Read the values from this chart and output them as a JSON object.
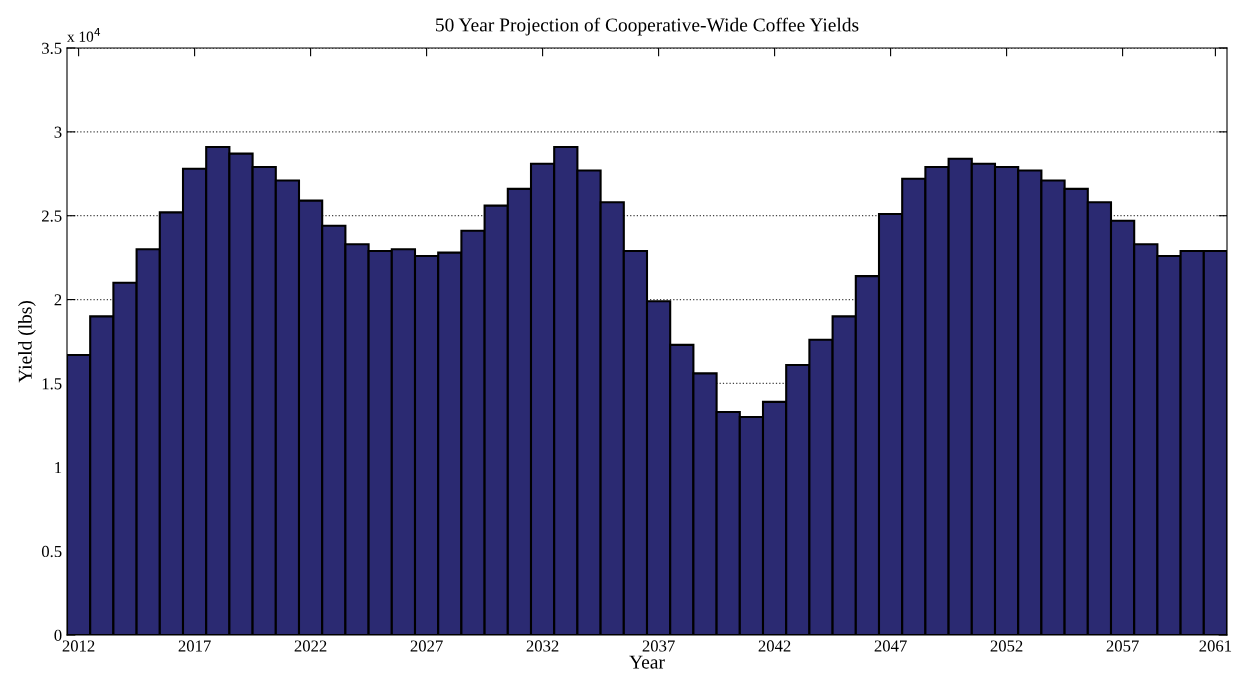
{
  "chart_data": {
    "type": "bar",
    "title": "50 Year Projection of Cooperative-Wide Coffee Yields",
    "xlabel": "Year",
    "ylabel": "Yield (lbs)",
    "annotations": [
      "x 10$^{4}$"
    ],
    "x": [
      2012,
      2013,
      2014,
      2015,
      2016,
      2017,
      2018,
      2019,
      2020,
      2021,
      2022,
      2023,
      2024,
      2025,
      2026,
      2027,
      2028,
      2029,
      2030,
      2031,
      2032,
      2033,
      2034,
      2035,
      2036,
      2037,
      2038,
      2039,
      2040,
      2041,
      2042,
      2043,
      2044,
      2045,
      2046,
      2047,
      2048,
      2049,
      2050,
      2051,
      2052,
      2053,
      2054,
      2055,
      2056,
      2057,
      2058,
      2059,
      2060,
      2061
    ],
    "values": [
      1.67,
      1.9,
      2.1,
      2.3,
      2.52,
      2.78,
      2.91,
      2.87,
      2.79,
      2.71,
      2.59,
      2.44,
      2.33,
      2.29,
      2.3,
      2.26,
      2.28,
      2.41,
      2.56,
      2.66,
      2.81,
      2.91,
      2.77,
      2.58,
      2.29,
      1.99,
      1.73,
      1.56,
      1.33,
      1.3,
      1.39,
      1.61,
      1.76,
      1.9,
      2.14,
      2.51,
      2.72,
      2.79,
      2.84,
      2.81,
      2.79,
      2.77,
      2.71,
      2.66,
      2.58,
      2.47,
      2.33,
      2.26,
      2.29,
      2.29
    ],
    "color": "#2b2a72",
    "xlim": [
      2011.5,
      2061.5
    ],
    "xticks": [
      2012,
      2017,
      2022,
      2027,
      2032,
      2037,
      2042,
      2047,
      2052,
      2057,
      2061
    ],
    "ylim": [
      0,
      3.5
    ],
    "yticks": [
      0,
      0.5,
      1,
      1.5,
      2,
      2.5,
      3,
      3.5
    ],
    "grid": "y",
    "line_style": "dotted"
  }
}
